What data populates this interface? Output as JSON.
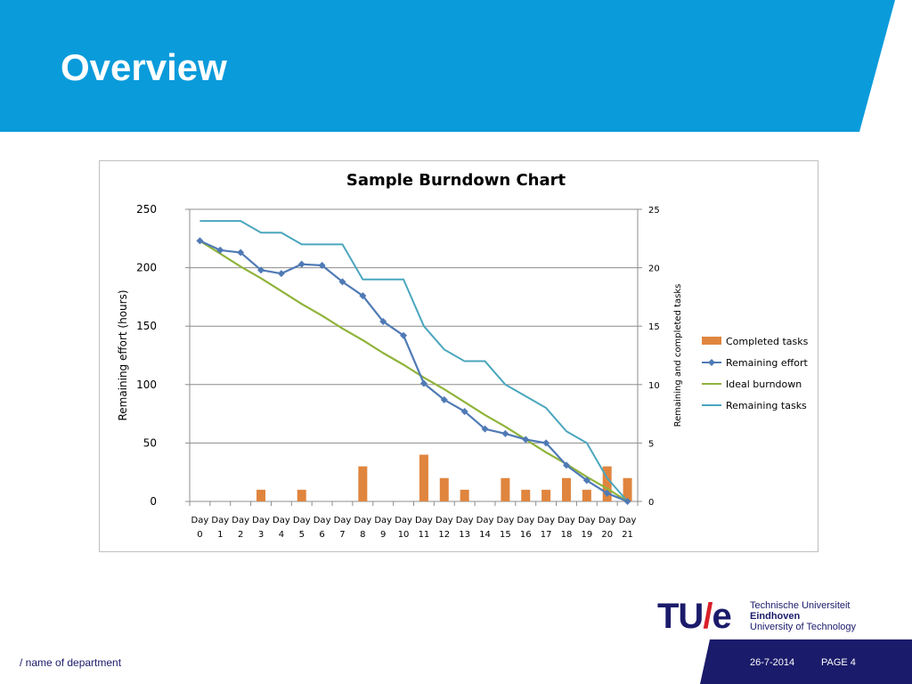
{
  "slide": {
    "title": "Overview",
    "footer": {
      "department": "/ name of department",
      "date": "26-7-2014",
      "page": "PAGE 4"
    },
    "logo": {
      "mark_left": "TU",
      "mark_slash": "/",
      "mark_right": "e",
      "line1": "Technische Universiteit",
      "line2": "Eindhoven",
      "line3": "University of Technology"
    }
  },
  "colors": {
    "header_blue": "#0a9bdb",
    "footer_navy": "#1b1b6b",
    "completed_tasks": "#e0853e",
    "remaining_effort": "#4f7ab5",
    "ideal_burndown": "#8fb33a",
    "remaining_tasks": "#4aa6bd"
  },
  "chart_data": {
    "type": "bar+line",
    "title": "Sample Burndown Chart",
    "ylabel": "Remaining effort (hours)",
    "y2label": "Remaining and completed tasks",
    "ylim": [
      0,
      250
    ],
    "y2lim": [
      0,
      25
    ],
    "yticks": [
      "0",
      "50",
      "100",
      "150",
      "200",
      "250"
    ],
    "y2ticks": [
      "0",
      "5",
      "10",
      "15",
      "20",
      "25"
    ],
    "categories": [
      [
        "Day",
        "0"
      ],
      [
        "Day",
        "1"
      ],
      [
        "Day",
        "2"
      ],
      [
        "Day",
        "3"
      ],
      [
        "Day",
        "4"
      ],
      [
        "Day",
        "5"
      ],
      [
        "Day",
        "6"
      ],
      [
        "Day",
        "7"
      ],
      [
        "Day",
        "8"
      ],
      [
        "Day",
        "9"
      ],
      [
        "Day",
        "10"
      ],
      [
        "Day",
        "11"
      ],
      [
        "Day",
        "12"
      ],
      [
        "Day",
        "13"
      ],
      [
        "Day",
        "14"
      ],
      [
        "Day",
        "15"
      ],
      [
        "Day",
        "16"
      ],
      [
        "Day",
        "17"
      ],
      [
        "Day",
        "18"
      ],
      [
        "Day",
        "19"
      ],
      [
        "Day",
        "20"
      ],
      [
        "Day",
        "21"
      ]
    ],
    "grid": true,
    "legend_position": "right",
    "series": [
      {
        "name": "Completed tasks",
        "type": "bar",
        "axis": "right",
        "values": [
          0,
          0,
          0,
          1,
          0,
          1,
          0,
          0,
          3,
          0,
          0,
          4,
          2,
          1,
          0,
          2,
          1,
          1,
          2,
          1,
          3,
          2
        ]
      },
      {
        "name": "Remaining effort",
        "type": "line-marker",
        "axis": "left",
        "values": [
          223,
          215,
          213,
          198,
          195,
          203,
          202,
          188,
          176,
          154,
          142,
          101,
          87,
          77,
          62,
          58,
          53,
          50,
          31,
          18,
          7,
          0
        ]
      },
      {
        "name": "Ideal burndown",
        "type": "line",
        "axis": "left",
        "values": [
          223,
          212,
          201,
          191,
          180,
          169,
          159,
          148,
          138,
          127,
          117,
          106,
          96,
          85,
          74,
          64,
          53,
          42,
          32,
          21,
          11,
          0
        ]
      },
      {
        "name": "Remaining tasks",
        "type": "line",
        "axis": "right",
        "values": [
          24,
          24,
          24,
          23,
          23,
          22,
          22,
          22,
          19,
          19,
          19,
          15,
          13,
          12,
          12,
          10,
          9,
          8,
          6,
          5,
          2,
          0
        ]
      }
    ]
  }
}
